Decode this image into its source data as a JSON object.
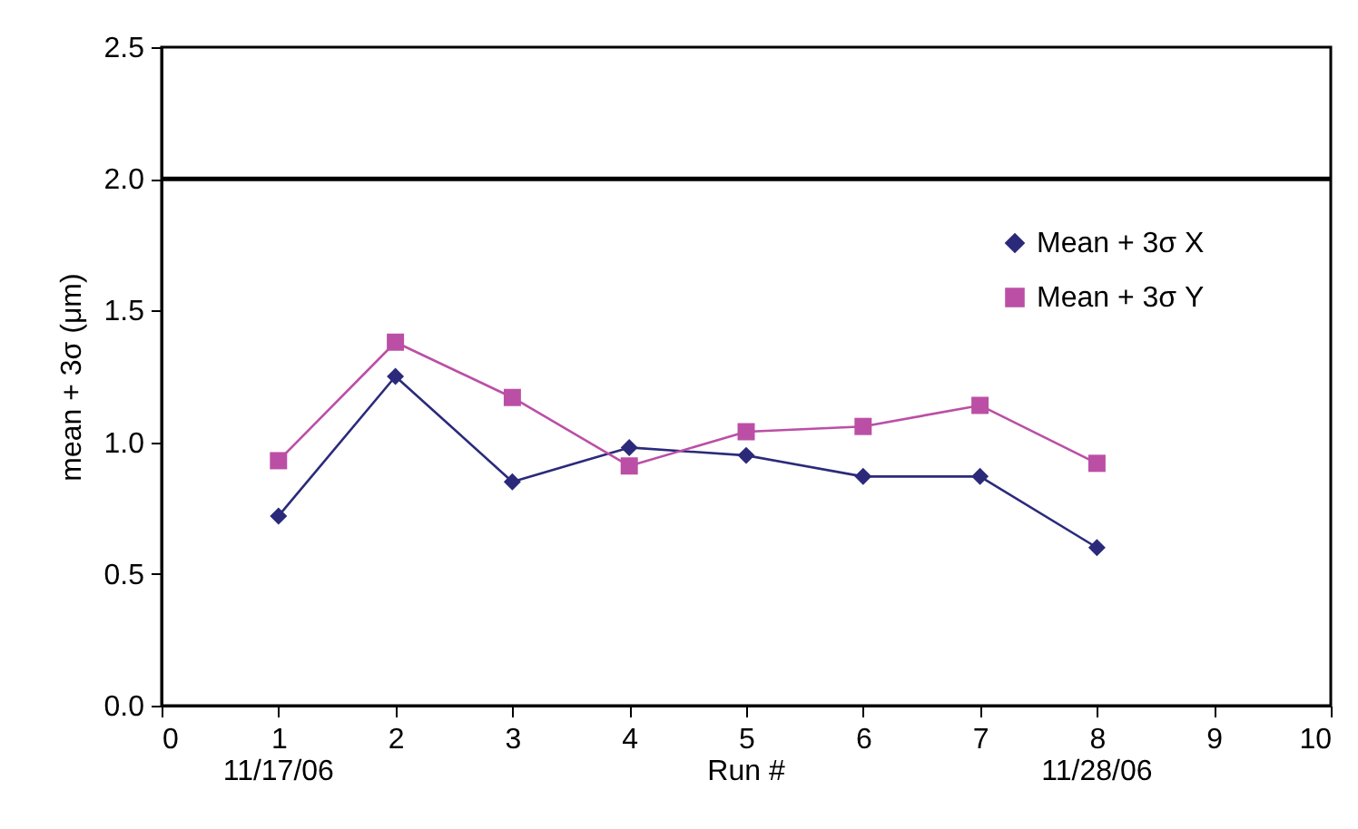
{
  "chart_data": {
    "type": "line",
    "xlabel": "Run #",
    "ylabel": "mean + 3σ (μm)",
    "x": [
      1,
      2,
      3,
      4,
      5,
      6,
      7,
      8
    ],
    "series": [
      {
        "name": "Mean + 3σ X",
        "color": "#2b2a7a",
        "marker": "diamond",
        "values": [
          0.72,
          1.25,
          0.85,
          0.98,
          0.95,
          0.87,
          0.87,
          0.6
        ]
      },
      {
        "name": "Mean + 3σ Y",
        "color": "#bb4fa5",
        "marker": "square",
        "values": [
          0.93,
          1.38,
          1.17,
          0.91,
          1.04,
          1.06,
          1.14,
          0.92
        ]
      }
    ],
    "xlim": [
      0,
      10
    ],
    "xticks": [
      0,
      1,
      2,
      3,
      4,
      5,
      6,
      7,
      8,
      9,
      10
    ],
    "ylim": [
      0,
      2.5
    ],
    "yticks": [
      {
        "value": 0,
        "label": "0.0"
      },
      {
        "value": 0.5,
        "label": "0.5"
      },
      {
        "value": 1,
        "label": "1.0"
      },
      {
        "value": 1.5,
        "label": "1.5"
      },
      {
        "value": 2,
        "label": "2.0"
      },
      {
        "value": 2.5,
        "label": "2.5"
      }
    ],
    "ref_lines": [
      {
        "axis": "y",
        "value": 2.0,
        "color": "#000000"
      }
    ],
    "annotations": [
      "11/17/06",
      "11/28/06"
    ],
    "legend": "top right",
    "grid": false,
    "line_style": "solid"
  }
}
